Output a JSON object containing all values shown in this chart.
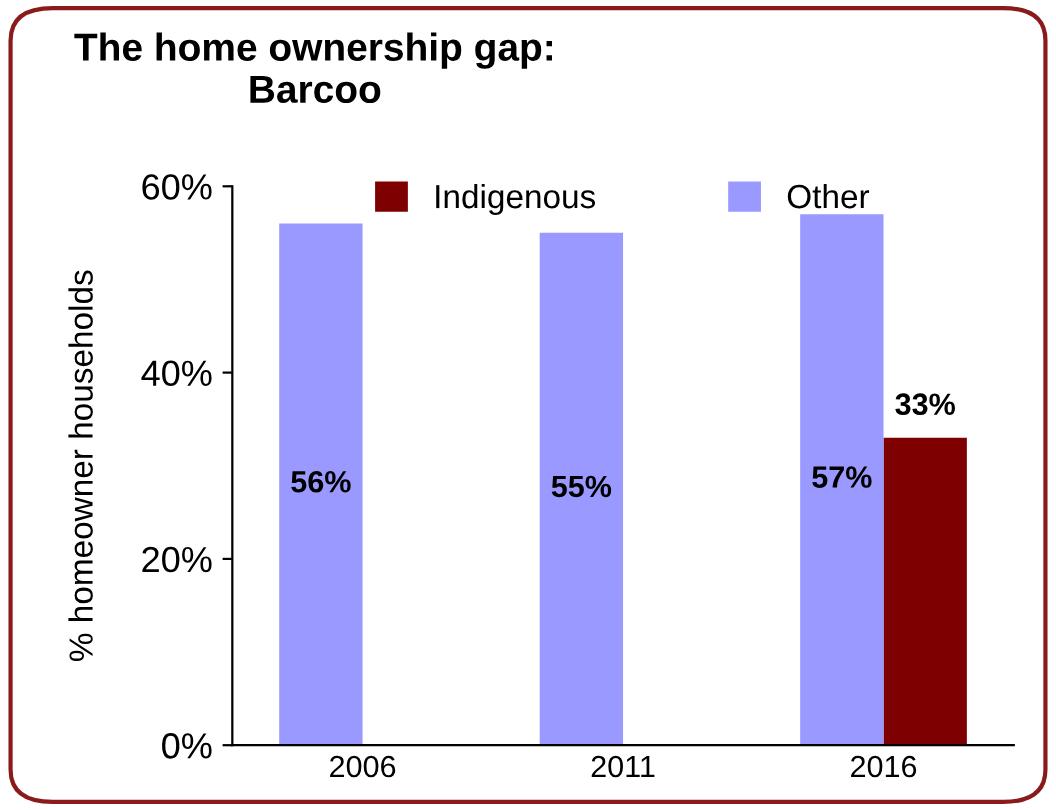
{
  "chart_data": {
    "type": "bar",
    "title": "The home ownership gap:\nBarcoo",
    "ylabel": "% homeowner households",
    "categories": [
      "2006",
      "2011",
      "2016"
    ],
    "series": [
      {
        "name": "Indigenous",
        "color": "#7f0000",
        "values": [
          null,
          null,
          33
        ],
        "value_labels": [
          null,
          null,
          "33%"
        ]
      },
      {
        "name": "Other",
        "color": "#9999ff",
        "values": [
          56,
          55,
          57
        ],
        "value_labels": [
          "56%",
          "55%",
          "57%"
        ]
      }
    ],
    "ylim": [
      0,
      60
    ],
    "yticks": [
      {
        "value": 0,
        "label": "0%"
      },
      {
        "value": 20,
        "label": "20%"
      },
      {
        "value": 40,
        "label": "40%"
      },
      {
        "value": 60,
        "label": "60%"
      }
    ],
    "grid": false,
    "legend": "top"
  }
}
